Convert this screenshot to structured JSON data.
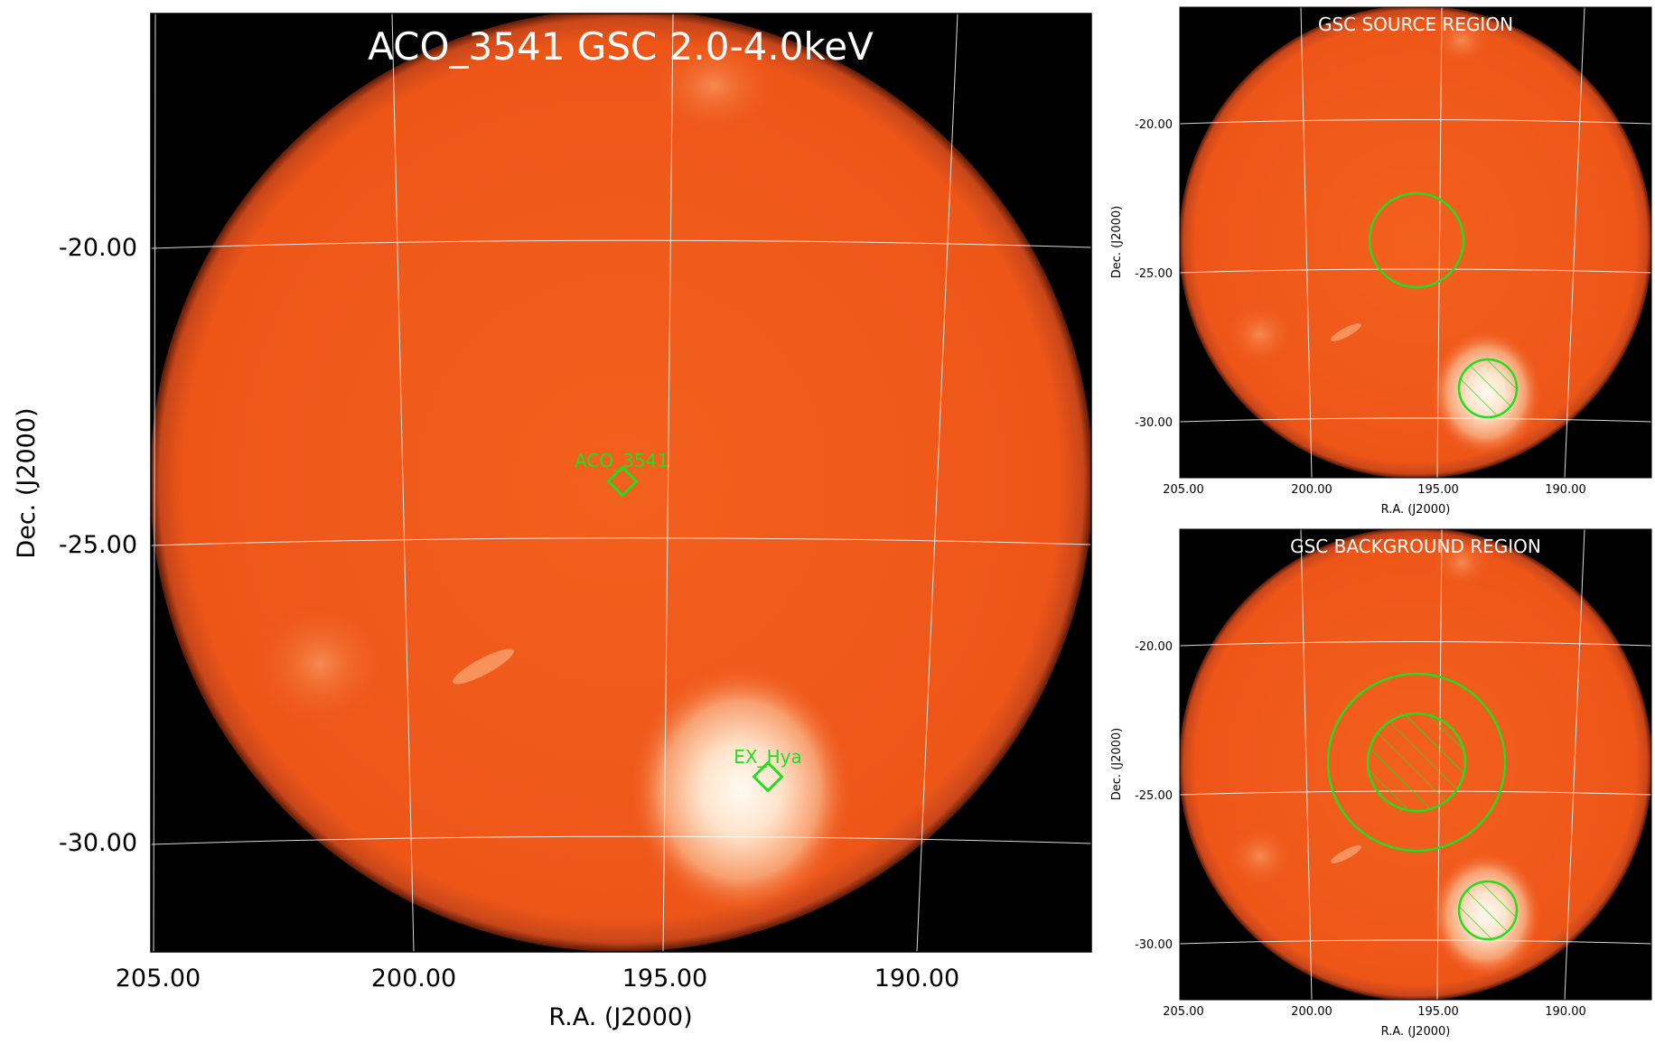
{
  "main_panel": {
    "title": "ACO_3541 GSC 2.0-4.0keV",
    "xlabel": "R.A. (J2000)",
    "ylabel": "Dec. (J2000)",
    "x_ticks": [
      "205.00",
      "200.00",
      "195.00",
      "190.00"
    ],
    "y_ticks": [
      "-20.00",
      "-25.00",
      "-30.00"
    ],
    "sources": [
      {
        "label": "ACO_3541",
        "ra": 195.9,
        "dec": -24.0
      },
      {
        "label": "EX_Hya",
        "ra": 193.1,
        "dec": -29.0
      }
    ]
  },
  "source_panel": {
    "title": "GSC SOURCE REGION",
    "xlabel": "R.A. (J2000)",
    "ylabel": "Dec. (J2000)",
    "x_ticks": [
      "205.00",
      "200.00",
      "195.00",
      "190.00"
    ],
    "y_ticks": [
      "-20.00",
      "-25.00",
      "-30.00"
    ]
  },
  "background_panel": {
    "title": "GSC BACKGROUND REGION",
    "xlabel": "R.A. (J2000)",
    "ylabel": "Dec. (J2000)",
    "x_ticks": [
      "205.00",
      "200.00",
      "195.00",
      "190.00"
    ],
    "y_ticks": [
      "-20.00",
      "-25.00",
      "-30.00"
    ]
  },
  "colors": {
    "field": "#f0581a",
    "bright": "#fff4e4",
    "region": "#22dd22",
    "grid": "#ffffff",
    "frame": "#000000"
  }
}
